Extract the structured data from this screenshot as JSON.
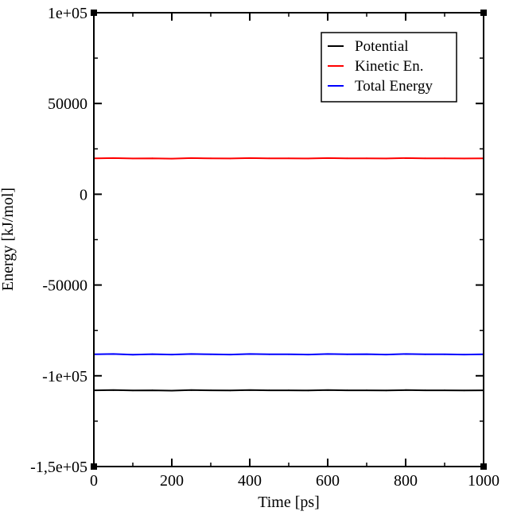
{
  "chart_data": {
    "type": "line",
    "title": "",
    "xlabel": "Time [ps]",
    "ylabel": "Energy [kJ/mol]",
    "xlim": [
      0,
      1000
    ],
    "ylim": [
      -150000,
      100000
    ],
    "x_ticks": [
      0,
      200,
      400,
      600,
      800,
      1000
    ],
    "x_tick_labels": [
      "0",
      "200",
      "400",
      "600",
      "800",
      "1000"
    ],
    "y_ticks": [
      -150000,
      -100000,
      -50000,
      0,
      50000,
      100000
    ],
    "y_tick_labels": [
      "-1,5e+05",
      "-1e+05",
      "-50000",
      "0",
      "50000",
      "1e+05"
    ],
    "grid": false,
    "legend_position": "top-right",
    "x": [
      0,
      50,
      100,
      150,
      200,
      250,
      300,
      350,
      400,
      450,
      500,
      550,
      600,
      650,
      700,
      750,
      800,
      850,
      900,
      950,
      1000
    ],
    "series": [
      {
        "name": "Potential",
        "color": "#000000",
        "values": [
          -108000,
          -107900,
          -108100,
          -108000,
          -108200,
          -107900,
          -108000,
          -108100,
          -107900,
          -108000,
          -108000,
          -108100,
          -107900,
          -108000,
          -108000,
          -108100,
          -107900,
          -108000,
          -108000,
          -108100,
          -108000
        ]
      },
      {
        "name": "Kinetic En.",
        "color": "#ff0000",
        "values": [
          19800,
          19900,
          19700,
          19800,
          19600,
          19900,
          19800,
          19700,
          19900,
          19800,
          19800,
          19700,
          19900,
          19800,
          19800,
          19700,
          19900,
          19800,
          19800,
          19700,
          19800
        ]
      },
      {
        "name": "Total Energy",
        "color": "#0000ff",
        "values": [
          -88200,
          -88000,
          -88400,
          -88100,
          -88300,
          -88000,
          -88200,
          -88300,
          -88000,
          -88200,
          -88200,
          -88300,
          -88000,
          -88200,
          -88100,
          -88300,
          -88000,
          -88200,
          -88200,
          -88300,
          -88200
        ]
      }
    ]
  }
}
